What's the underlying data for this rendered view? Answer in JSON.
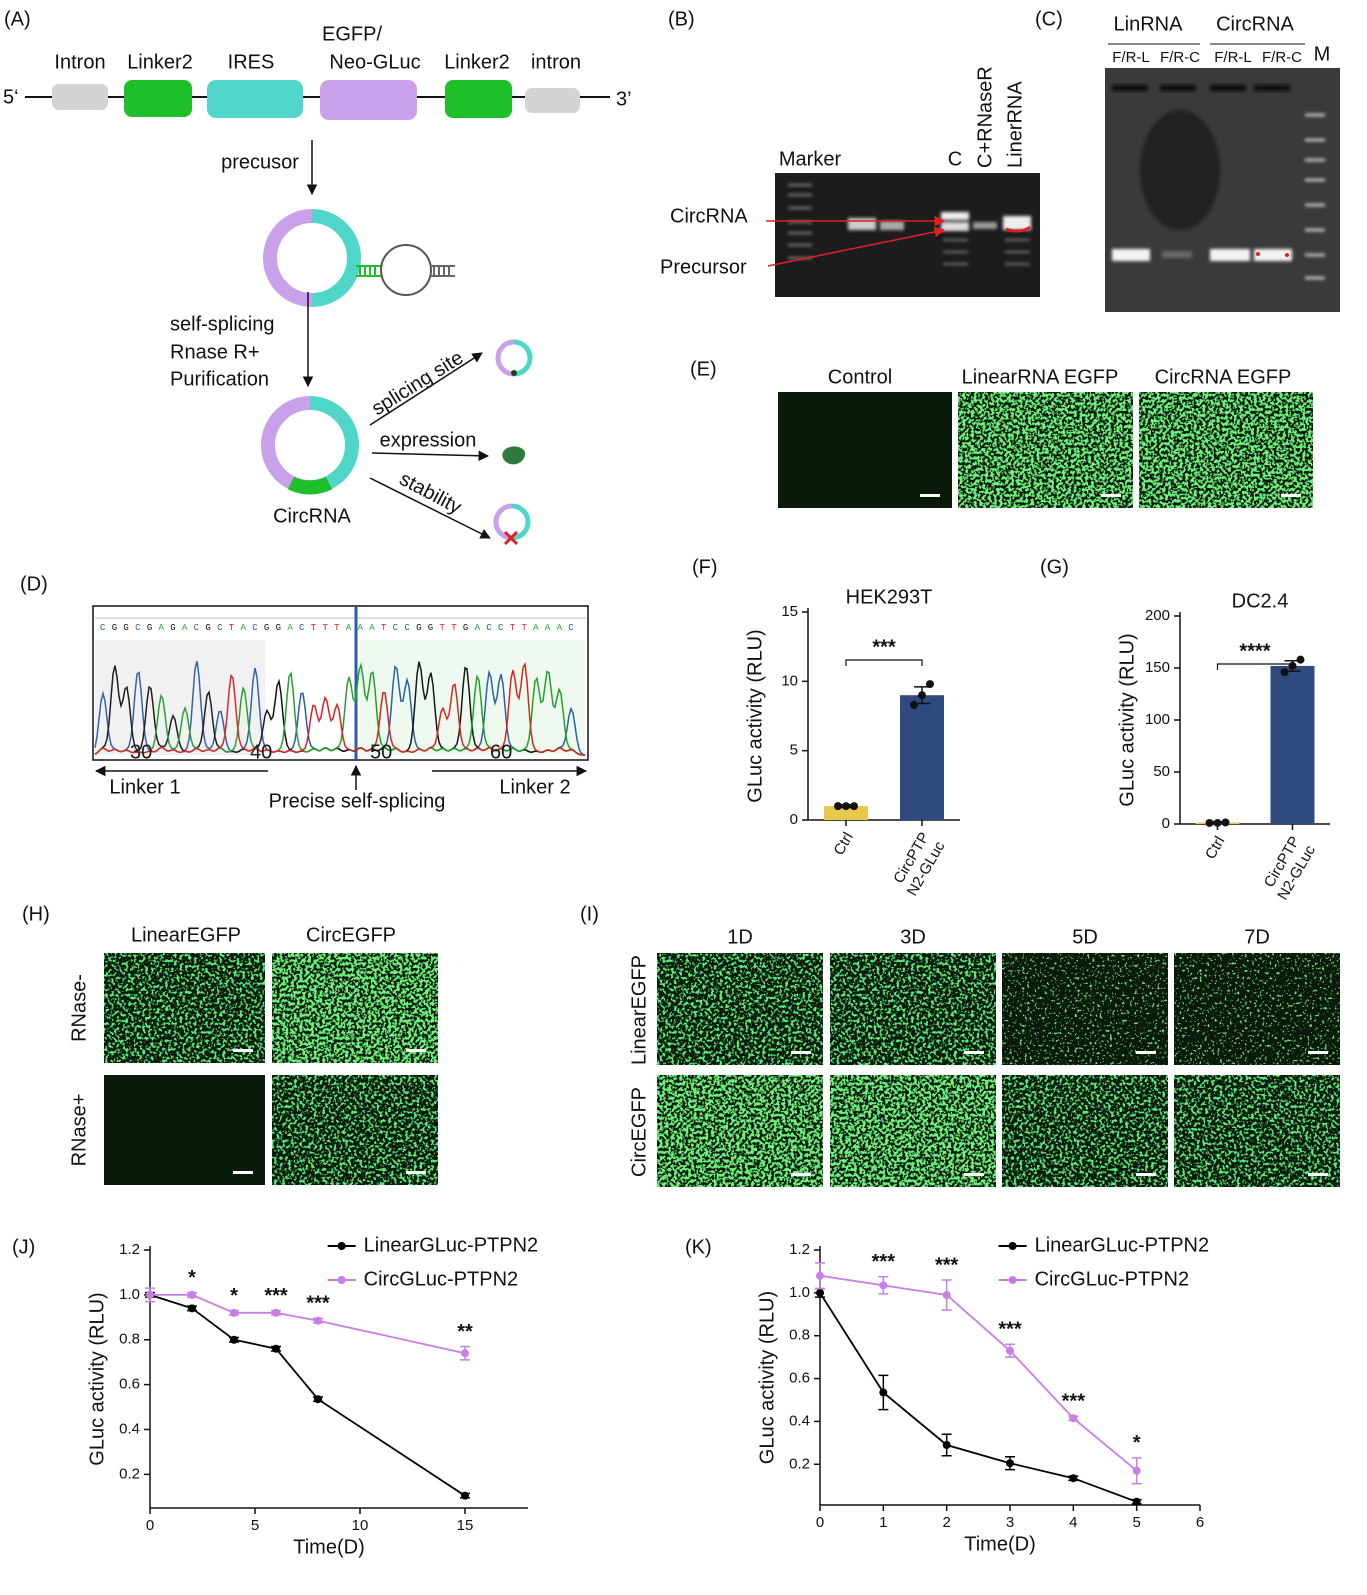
{
  "panels": {
    "a": {
      "label": "(A)",
      "five_prime": "5‘",
      "three_prime": "3’",
      "segments": [
        "Intron",
        "Linker2",
        "IRES",
        "EGFP/",
        "Neo-GLuc",
        "Linker2",
        "intron"
      ],
      "steps": [
        "precusor",
        "self-splicing",
        "Rnase R+",
        "Purification"
      ],
      "product": "CircRNA",
      "outcomes": [
        "splicing site",
        "expression",
        "stability"
      ]
    },
    "b": {
      "label": "(B)",
      "lanes": [
        "Marker",
        "C",
        "C+RNaseR",
        "LinerRNA"
      ],
      "bands": [
        "CircRNA",
        "Precursor"
      ]
    },
    "c": {
      "label": "(C)",
      "groups": [
        "LinRNA",
        "CircRNA"
      ],
      "primers": [
        "F/R-L",
        "F/R-C",
        "F/R-L",
        "F/R-C"
      ],
      "marker": "M"
    },
    "d": {
      "label": "(D)",
      "sequence": "CGGCGAGACGCTACGGACTTTAAATCCGGTTGACCTTAAAC",
      "positions": [
        30,
        40,
        50,
        60
      ],
      "labels": [
        "Linker 1",
        "Precise self-splicing",
        "Linker 2"
      ]
    },
    "e": {
      "label": "(E)",
      "columns": [
        "Control",
        "LinearRNA EGFP",
        "CircRNA EGFP"
      ]
    },
    "h": {
      "label": "(H)",
      "columns": [
        "LinearEGFP",
        "CircEGFP"
      ],
      "rows": [
        "RNase-",
        "RNase+"
      ]
    },
    "i": {
      "label": "(I)",
      "columns": [
        "1D",
        "3D",
        "5D",
        "7D"
      ],
      "rows": [
        "LinearEGFP",
        "CircEGFP"
      ]
    }
  },
  "chart_data": [
    {
      "type": "bar",
      "label": "(F)",
      "title": "HEK293T",
      "ylabel": "GLuc activity (RLU)",
      "categories": [
        "Ctrl",
        "CircPTP N2-GLuc"
      ],
      "values": [
        1,
        9
      ],
      "errors": [
        0.1,
        0.6
      ],
      "points": [
        [
          1,
          1,
          1
        ],
        [
          8.3,
          9,
          9.8
        ]
      ],
      "colors": [
        "#e8c84a",
        "#2e4a7f"
      ],
      "ylim": [
        0,
        15
      ],
      "yticks": [
        0,
        5,
        10,
        15
      ],
      "significance": "***"
    },
    {
      "type": "bar",
      "label": "(G)",
      "title": "DC2.4",
      "ylabel": "GLuc activity (RLU)",
      "categories": [
        "Ctrl",
        "CircPTP N2-GLuc"
      ],
      "values": [
        1.5,
        152
      ],
      "errors": [
        0.5,
        5
      ],
      "points": [
        [
          1,
          1,
          1.5
        ],
        [
          146,
          152,
          158
        ]
      ],
      "colors": [
        "#e8c84a",
        "#2e4a7f"
      ],
      "ylim": [
        0,
        200
      ],
      "yticks": [
        0,
        50,
        100,
        150,
        200
      ],
      "significance": "****"
    },
    {
      "type": "line",
      "label": "(J)",
      "xlabel": "Time(D)",
      "ylabel": "GLuc activity (RLU)",
      "x": [
        0,
        2,
        4,
        6,
        8,
        15
      ],
      "xlim": [
        0,
        18
      ],
      "xticks": [
        0,
        5,
        10,
        15
      ],
      "ylim": [
        0.05,
        1.2
      ],
      "yticks": [
        0.2,
        0.4,
        0.6,
        0.8,
        {
          "value": 1,
          "label": "1.0"
        },
        1.2
      ],
      "legend": "upper right",
      "series": [
        {
          "name": "LinearGLuc-PTPN2",
          "color": "#000000",
          "values": [
            1,
            0.94,
            0.8,
            0.76,
            0.535,
            0.105
          ],
          "errors": [
            0.01,
            0.01,
            0.01,
            0.01,
            0.01,
            0.01
          ]
        },
        {
          "name": "CircGLuc-PTPN2",
          "color": "#c77fe6",
          "values": [
            1,
            1,
            0.92,
            0.92,
            0.885,
            0.74
          ],
          "errors": [
            0.03,
            0.01,
            0.01,
            0.01,
            0.01,
            0.03
          ]
        }
      ],
      "annotations": [
        null,
        "*",
        "*",
        "***",
        "***",
        "**"
      ]
    },
    {
      "type": "line",
      "label": "(K)",
      "xlabel": "Time(D)",
      "ylabel": "GLuc activity (RLU)",
      "x": [
        0,
        1,
        2,
        3,
        4,
        5
      ],
      "xlim": [
        0,
        6
      ],
      "xticks": [
        0,
        1,
        2,
        3,
        4,
        5,
        6
      ],
      "ylim": [
        0.01,
        1.2
      ],
      "yticks": [
        0.2,
        0.4,
        0.6,
        0.8,
        {
          "value": 1,
          "label": "1.0"
        },
        1.2
      ],
      "legend": "upper right",
      "series": [
        {
          "name": "LinearGLuc-PTPN2",
          "color": "#000000",
          "values": [
            1,
            0.535,
            0.29,
            0.205,
            0.135,
            0.025
          ],
          "errors": [
            0.02,
            0.08,
            0.05,
            0.03,
            0.01,
            0.01
          ]
        },
        {
          "name": "CircGLuc-PTPN2",
          "color": "#c77fe6",
          "values": [
            1.08,
            1.035,
            0.99,
            0.73,
            0.415,
            0.17
          ],
          "errors": [
            0.06,
            0.04,
            0.07,
            0.03,
            0.01,
            0.06
          ]
        }
      ],
      "annotations": [
        null,
        "***",
        "***",
        "***",
        "***",
        "*"
      ]
    }
  ]
}
